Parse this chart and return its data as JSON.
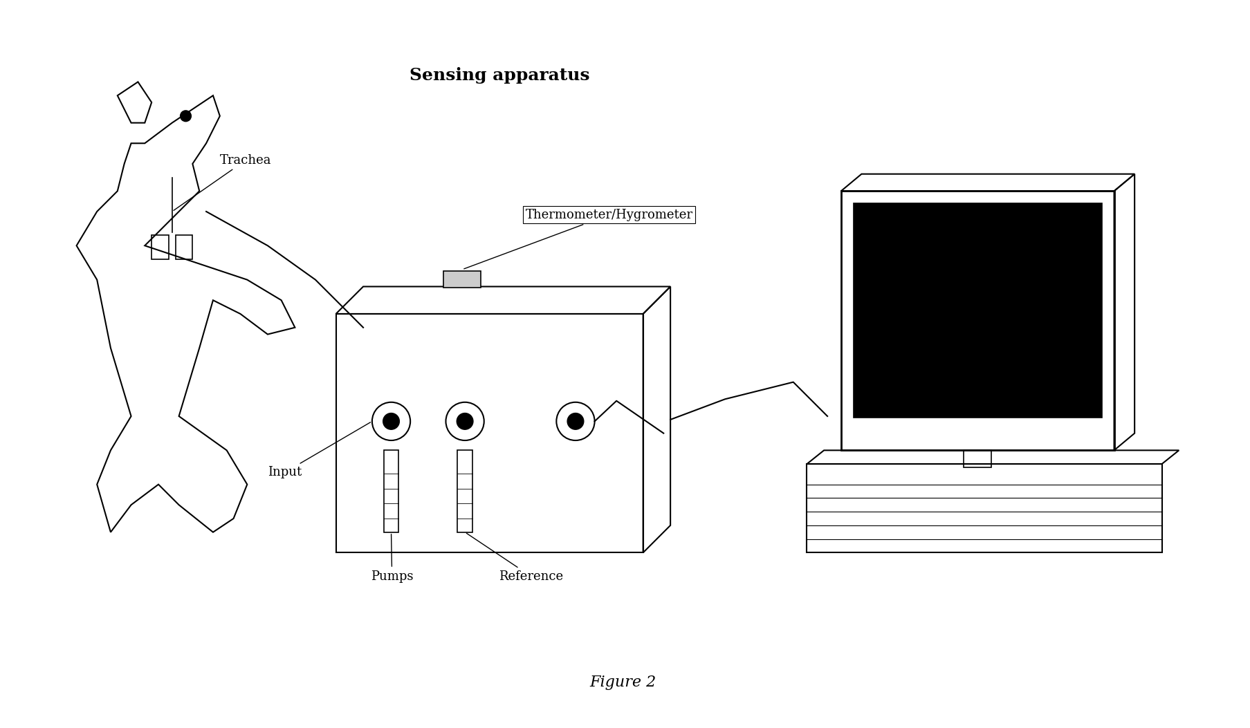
{
  "title": "Sensing apparatus",
  "figure_label": "Figure 2",
  "labels": {
    "trachea": "Trachea",
    "input": "Input",
    "pumps": "Pumps",
    "reference": "Reference",
    "therm_hygro": "Thermometer/Hygrometer"
  },
  "bg_color": "#ffffff",
  "line_color": "#000000",
  "title_fontsize": 16,
  "label_fontsize": 13,
  "figure_label_fontsize": 15
}
